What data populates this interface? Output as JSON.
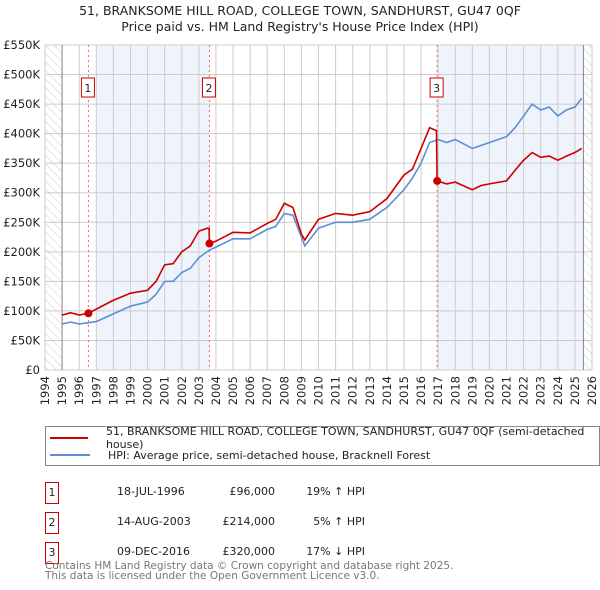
{
  "chart_data": {
    "type": "line",
    "title": "51, BRANKSOME HILL ROAD, COLLEGE TOWN, SANDHURST, GU47 0QF",
    "subtitle": "Price paid vs. HM Land Registry's House Price Index (HPI)",
    "xlim": [
      1994,
      2026
    ],
    "ylim": [
      0,
      550000
    ],
    "x_ticks": [
      "1994",
      "1995",
      "1996",
      "1997",
      "1998",
      "1999",
      "2000",
      "2001",
      "2002",
      "2003",
      "2004",
      "2005",
      "2006",
      "2007",
      "2008",
      "2009",
      "2010",
      "2011",
      "2012",
      "2013",
      "2014",
      "2015",
      "2016",
      "2017",
      "2018",
      "2019",
      "2020",
      "2021",
      "2022",
      "2023",
      "2024",
      "2025",
      "2026"
    ],
    "y_ticks": [
      {
        "v": 0,
        "label": "£0"
      },
      {
        "v": 50000,
        "label": "£50K"
      },
      {
        "v": 100000,
        "label": "£100K"
      },
      {
        "v": 150000,
        "label": "£150K"
      },
      {
        "v": 200000,
        "label": "£200K"
      },
      {
        "v": 250000,
        "label": "£250K"
      },
      {
        "v": 300000,
        "label": "£300K"
      },
      {
        "v": 350000,
        "label": "£350K"
      },
      {
        "v": 400000,
        "label": "£400K"
      },
      {
        "v": 450000,
        "label": "£450K"
      },
      {
        "v": 500000,
        "label": "£500K"
      },
      {
        "v": 550000,
        "label": "£550K"
      }
    ],
    "grid": true,
    "data_range": [
      1995,
      2025.5
    ],
    "shaded_ranges": [
      [
        1997,
        2003.62
      ],
      [
        2016.94,
        2025.5
      ]
    ],
    "series": [
      {
        "name": "51, BRANKSOME HILL ROAD, COLLEGE TOWN, SANDHURST, GU47 0QF (semi-detached house)",
        "color": "#cc0000",
        "x": [
          1995,
          1995.5,
          1996,
          1996.54,
          1997,
          1998,
          1999,
          2000,
          2000.5,
          2001,
          2001.5,
          2002,
          2002.5,
          2003,
          2003.5,
          2003.6,
          2003.62,
          2004,
          2005,
          2006,
          2007,
          2007.5,
          2008,
          2008.5,
          2009,
          2009.2,
          2010,
          2011,
          2012,
          2013,
          2014,
          2015,
          2015.5,
          2016,
          2016.5,
          2016.9,
          2016.94,
          2017.5,
          2018,
          2019,
          2019.5,
          2020,
          2021,
          2021.5,
          2022,
          2022.5,
          2023,
          2023.5,
          2024,
          2024.5,
          2025,
          2025.4
        ],
        "y": [
          93000,
          97000,
          93000,
          96000,
          103000,
          118000,
          130000,
          135000,
          150000,
          178000,
          180000,
          200000,
          210000,
          235000,
          240000,
          240000,
          214000,
          218000,
          233000,
          232000,
          248000,
          255000,
          282000,
          275000,
          230000,
          220000,
          255000,
          265000,
          262000,
          268000,
          290000,
          330000,
          340000,
          375000,
          410000,
          405000,
          320000,
          315000,
          318000,
          305000,
          312000,
          315000,
          320000,
          338000,
          355000,
          368000,
          360000,
          362000,
          355000,
          362000,
          368000,
          375000
        ]
      },
      {
        "name": "HPI: Average price, semi-detached house, Bracknell Forest",
        "color": "#5b8fd6",
        "x": [
          1995,
          1995.5,
          1996,
          1996.54,
          1997,
          1998,
          1999,
          2000,
          2000.5,
          2001,
          2001.5,
          2002,
          2002.5,
          2003,
          2003.62,
          2004,
          2004.5,
          2005,
          2006,
          2007,
          2007.5,
          2008,
          2008.5,
          2009,
          2009.2,
          2010,
          2011,
          2012,
          2013,
          2014,
          2015,
          2015.5,
          2016,
          2016.5,
          2017,
          2017.5,
          2018,
          2019,
          2019.5,
          2020,
          2021,
          2021.5,
          2022,
          2022.5,
          2023,
          2023.5,
          2024,
          2024.5,
          2025,
          2025.4
        ],
        "y": [
          78000,
          81000,
          78000,
          80000,
          82000,
          95000,
          108000,
          115000,
          128000,
          150000,
          150000,
          165000,
          172000,
          190000,
          203000,
          208000,
          215000,
          222000,
          222000,
          238000,
          243000,
          265000,
          262000,
          225000,
          210000,
          240000,
          250000,
          250000,
          255000,
          275000,
          305000,
          325000,
          350000,
          385000,
          390000,
          385000,
          390000,
          375000,
          380000,
          385000,
          395000,
          410000,
          430000,
          450000,
          440000,
          445000,
          430000,
          440000,
          445000,
          460000
        ]
      }
    ],
    "sales": [
      {
        "num": "1",
        "x": 1996.54,
        "y": 96000,
        "date": "18-JUL-1996",
        "price": "£96,000",
        "hpi": "19% ↑ HPI"
      },
      {
        "num": "2",
        "x": 2003.62,
        "y": 214000,
        "date": "14-AUG-2003",
        "price": "£214,000",
        "hpi": "5% ↑ HPI"
      },
      {
        "num": "3",
        "x": 2016.94,
        "y": 320000,
        "date": "09-DEC-2016",
        "price": "£320,000",
        "hpi": "17% ↓ HPI"
      }
    ]
  },
  "footer": {
    "line1": "Contains HM Land Registry data © Crown copyright and database right 2025.",
    "line2": "This data is licensed under the Open Government Licence v3.0."
  }
}
